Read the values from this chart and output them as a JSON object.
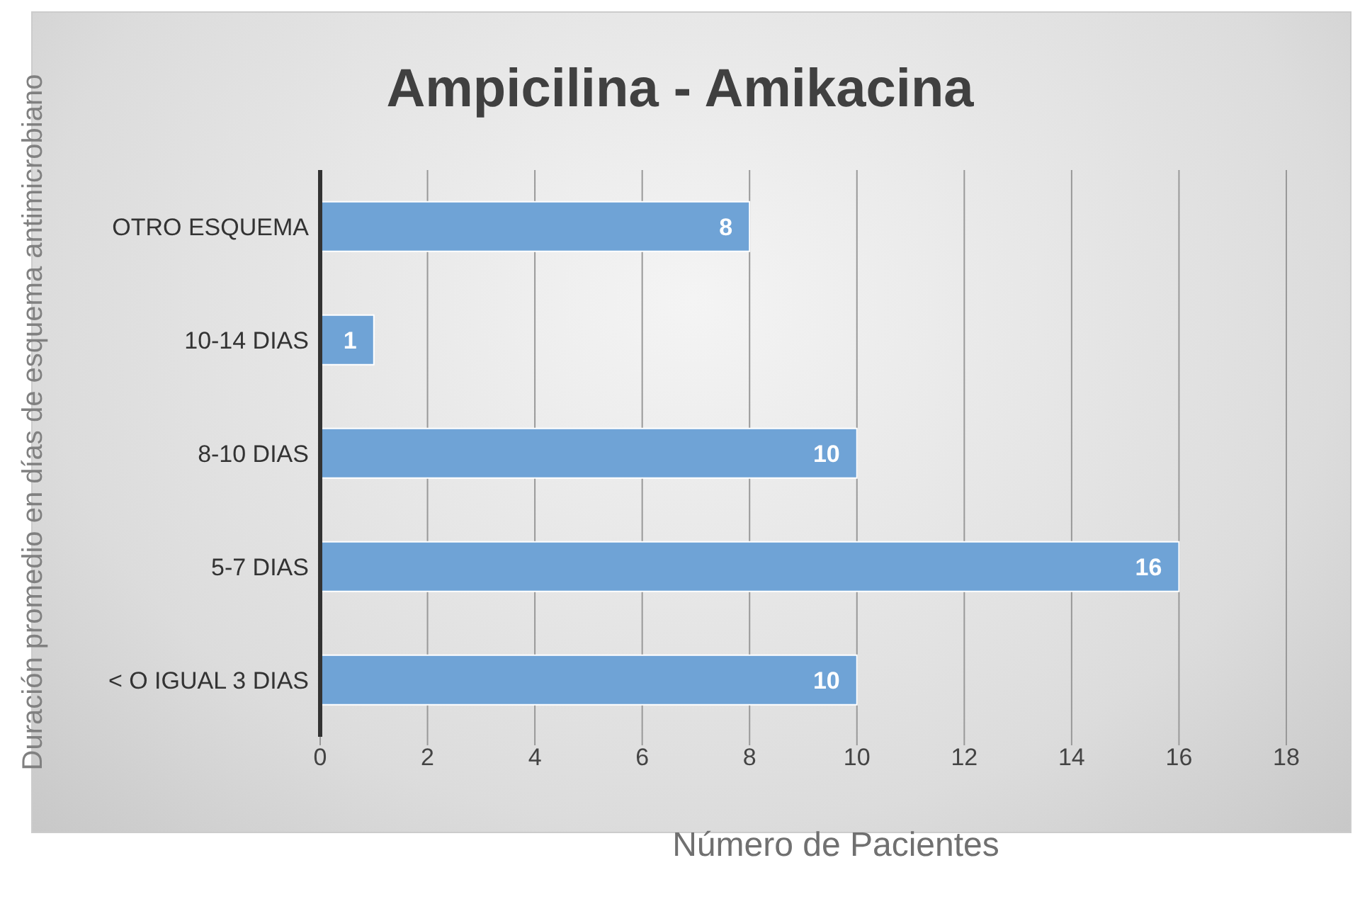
{
  "chart_data": {
    "type": "bar",
    "orientation": "horizontal",
    "title": "Ampicilina - Amikacina",
    "xlabel": "Número de Pacientes",
    "ylabel": "Duración promedio en días de esquema antimicrobiano",
    "categories": [
      "OTRO ESQUEMA",
      "10-14 DIAS",
      "8-10 DIAS",
      "5-7 DIAS",
      "< O IGUAL 3 DIAS"
    ],
    "values": [
      8,
      1,
      10,
      16,
      10
    ],
    "color": "#6fa3d6",
    "xlim": [
      0,
      18
    ],
    "xticks": [
      0,
      2,
      4,
      6,
      8,
      10,
      12,
      14,
      16,
      18
    ],
    "grid": "x",
    "data_labels": true
  }
}
